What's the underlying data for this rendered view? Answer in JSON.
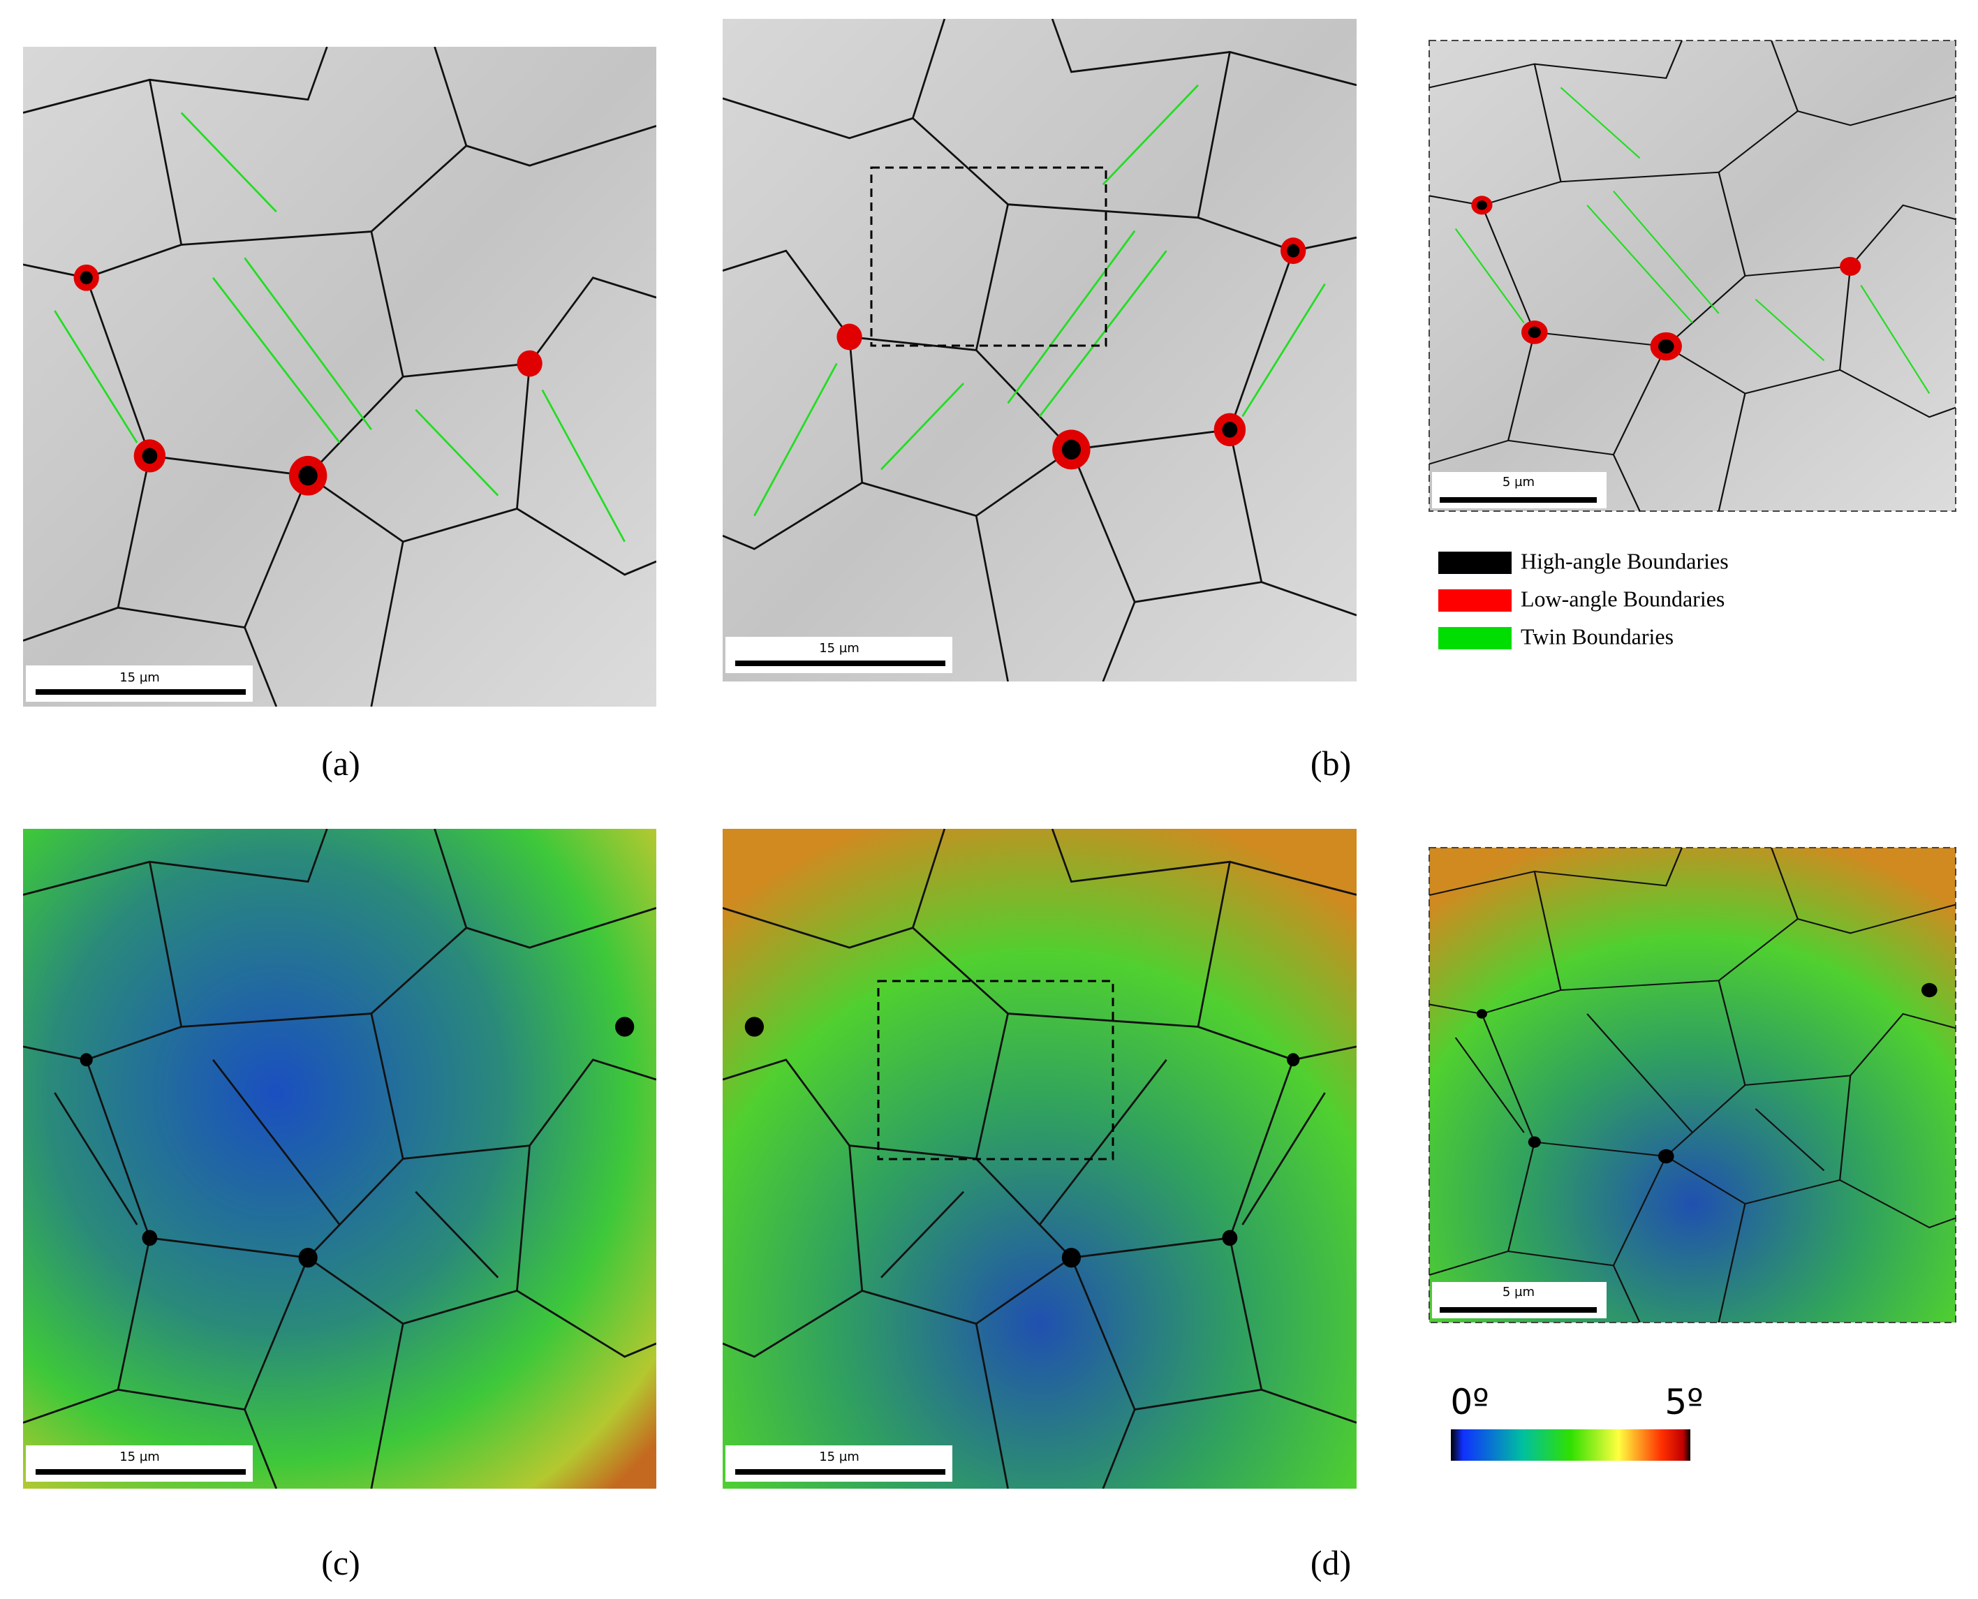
{
  "panels": [
    {
      "label": "(a)",
      "scale_bar": "15 µm"
    },
    {
      "label": "(b)",
      "scale_bar": "15 µm",
      "inset_scale_bar": "5 µm"
    },
    {
      "label": "(c)",
      "scale_bar": "15 µm"
    },
    {
      "label": "(d)",
      "scale_bar": "15 µm",
      "inset_scale_bar": "5 µm"
    }
  ],
  "legend": [
    {
      "name": "High-angle Boundaries",
      "color": "#000000"
    },
    {
      "name": "Low-angle Boundaries",
      "color": "#ff0000"
    },
    {
      "name": "Twin Boundaries",
      "color": "#00dd00"
    }
  ],
  "colorbar": {
    "min_label": "0º",
    "max_label": "5º"
  }
}
